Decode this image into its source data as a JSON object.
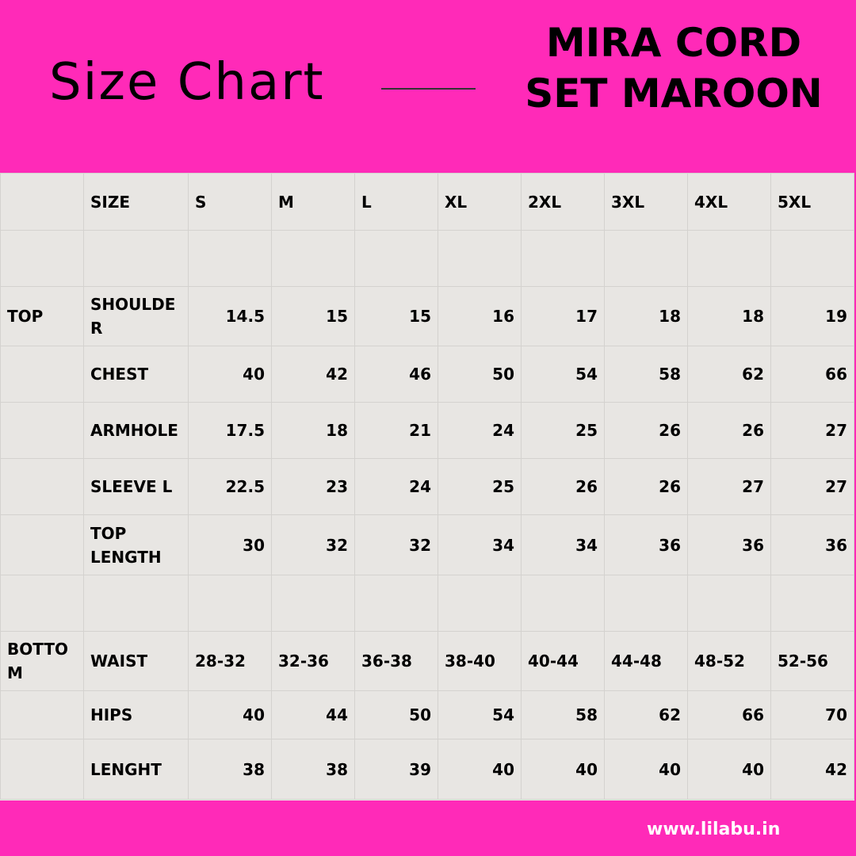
{
  "header": {
    "title": "Size Chart",
    "product_line1": "MIRA CORD",
    "product_line2": "SET MAROON"
  },
  "table": {
    "header_row": [
      "",
      "SIZE",
      "S",
      "M",
      "L",
      "XL",
      "2XL",
      "3XL",
      "4XL",
      "5XL"
    ],
    "rows": [
      {
        "section": "TOP",
        "label": "SHOULDE R",
        "values": [
          "14.5",
          "15",
          "15",
          "16",
          "17",
          "18",
          "18",
          "19"
        ]
      },
      {
        "section": "",
        "label": "CHEST",
        "values": [
          "40",
          "42",
          "46",
          "50",
          "54",
          "58",
          "62",
          "66"
        ]
      },
      {
        "section": "",
        "label": "ARMHOLE",
        "values": [
          "17.5",
          "18",
          "21",
          "24",
          "25",
          "26",
          "26",
          "27"
        ]
      },
      {
        "section": "",
        "label": "SLEEVE L",
        "values": [
          "22.5",
          "23",
          "24",
          "25",
          "26",
          "26",
          "27",
          "27"
        ]
      },
      {
        "section": "",
        "label": "TOP LENGTH",
        "values": [
          "30",
          "32",
          "32",
          "34",
          "34",
          "36",
          "36",
          "36"
        ]
      },
      {
        "section": "BOTTO M",
        "label": "WAIST",
        "values": [
          "28-32",
          "32-36",
          "36-38",
          "38-40",
          "40-44",
          "44-48",
          "48-52",
          "52-56"
        ]
      },
      {
        "section": "",
        "label": "HIPS",
        "values": [
          "40",
          "44",
          "50",
          "54",
          "58",
          "62",
          "66",
          "70"
        ]
      },
      {
        "section": "",
        "label": "LENGHT",
        "values": [
          "38",
          "38",
          "39",
          "40",
          "40",
          "40",
          "40",
          "42"
        ]
      }
    ]
  },
  "footer": {
    "url": "www.lilabu.in"
  },
  "colors": {
    "brand_pink": "#ff2ab8",
    "table_bg": "#e8e6e3",
    "url_text": "#ffffff"
  }
}
